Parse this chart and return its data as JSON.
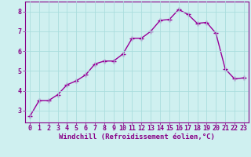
{
  "x": [
    0,
    1,
    2,
    3,
    4,
    5,
    6,
    7,
    8,
    9,
    10,
    11,
    12,
    13,
    14,
    15,
    16,
    17,
    18,
    19,
    20,
    21,
    22,
    23
  ],
  "y": [
    2.7,
    3.5,
    3.5,
    3.8,
    4.3,
    4.5,
    4.8,
    5.35,
    5.5,
    5.5,
    5.85,
    6.65,
    6.65,
    7.0,
    7.55,
    7.6,
    8.1,
    7.85,
    7.4,
    7.45,
    6.9,
    5.1,
    4.6,
    4.65
  ],
  "line_color": "#990099",
  "marker": "+",
  "markersize": 4,
  "linewidth": 1.0,
  "background_color": "#cff0f0",
  "grid_color": "#aadddd",
  "xlabel": "Windchill (Refroidissement éolien,°C)",
  "xlabel_fontsize": 6.5,
  "ylim": [
    2.4,
    8.5
  ],
  "xlim": [
    -0.5,
    23.5
  ],
  "yticks": [
    3,
    4,
    5,
    6,
    7,
    8
  ],
  "xticks": [
    0,
    1,
    2,
    3,
    4,
    5,
    6,
    7,
    8,
    9,
    10,
    11,
    12,
    13,
    14,
    15,
    16,
    17,
    18,
    19,
    20,
    21,
    22,
    23
  ],
  "tick_fontsize": 6,
  "tick_color": "#880088",
  "spine_color": "#880088"
}
